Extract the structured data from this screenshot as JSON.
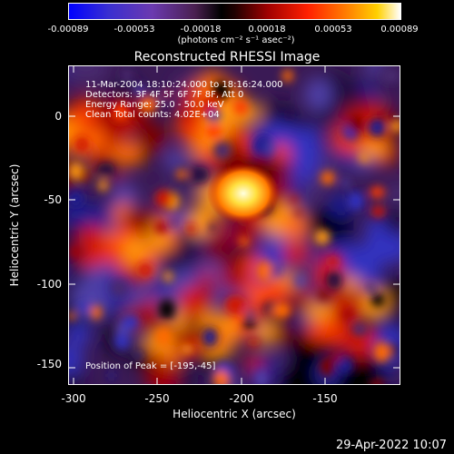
{
  "colorbar": {
    "ticks": [
      "-0.00089",
      "-0.00053",
      "-0.00018",
      "0.00018",
      "0.00053",
      "0.00089"
    ],
    "units": "(photons cm⁻² s⁻¹ asec⁻²)"
  },
  "title": "Reconstructed RHESSI Image",
  "annotations": {
    "time": "11-Mar-2004 18:10:24.000 to 18:16:24.000",
    "detectors": "Detectors: 3F 4F 5F 6F 7F 8F, Att 0",
    "energy": "Energy Range: 25.0 - 50.0 keV",
    "clean": "Clean     Total counts: 4.02E+04",
    "peak": "Position of Peak = [-195,-45]"
  },
  "axes": {
    "xlabel": "Heliocentric X (arcsec)",
    "ylabel": "Heliocentric Y (arcsec)",
    "xticks": [
      "-300",
      "-250",
      "-200",
      "-150"
    ],
    "yticks": [
      "0",
      "-50",
      "-100",
      "-150"
    ],
    "xrange": [
      -305,
      -107
    ],
    "yrange": [
      -165,
      25
    ]
  },
  "footer": {
    "date": "29-Apr-2022 10:07"
  },
  "colors": {
    "background": "#000000",
    "axis": "#ffffff"
  }
}
